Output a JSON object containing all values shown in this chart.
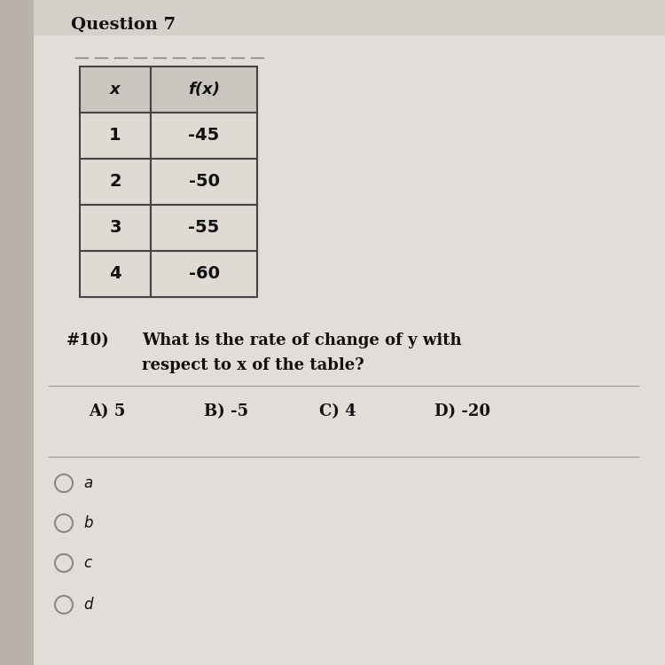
{
  "title_number": "#10)",
  "question_line1": "What is the rate of change of y with",
  "question_line2": "respect to x of the table?",
  "header": [
    "x",
    "f(x)"
  ],
  "table_data": [
    [
      "1",
      "-45"
    ],
    [
      "2",
      "-50"
    ],
    [
      "3",
      "-55"
    ],
    [
      "4",
      "-60"
    ]
  ],
  "choices": [
    "A) 5",
    "B) -5",
    "C) 4",
    "D) -20"
  ],
  "radio_labels": [
    "a",
    "b",
    "c",
    "d"
  ],
  "bg_color": "#c8c2b8",
  "panel_color": "#e2ddd8",
  "left_bar_color": "#b8b2a8",
  "table_cell_color": "#dedad4",
  "table_header_color": "#c9c5bf",
  "table_border_color": "#444444",
  "text_color": "#111111",
  "section_title": "Question 7",
  "separator_color": "#999999"
}
